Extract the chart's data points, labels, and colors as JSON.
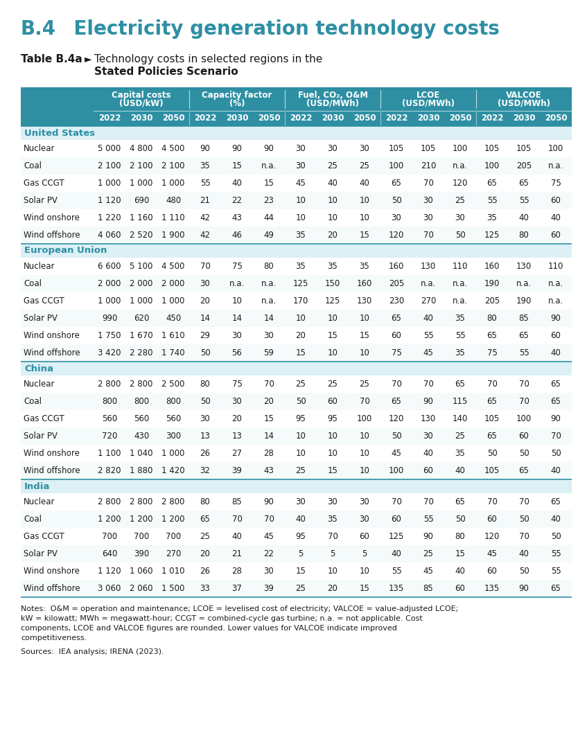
{
  "page_title_b4": "B.4",
  "page_title_rest": "    Electricity generation technology costs",
  "subtitle_bold": "Table B.4a",
  "subtitle_arrow": "►",
  "subtitle_text1": "Technology costs in selected regions in the",
  "subtitle_text2": "Stated Policies Scenario",
  "header_bg": "#2E8FA3",
  "header_text_color": "#FFFFFF",
  "region_bg": "#DCF0F5",
  "region_text_color": "#2E8FA3",
  "separator_color": "#2E8FA3",
  "text_color": "#1a1a1a",
  "group_display": [
    [
      "Capital costs",
      "(USD/kW)"
    ],
    [
      "Capacity factor",
      "(%)"
    ],
    [
      "Fuel, CO₂, O&M",
      "(USD/MWh)"
    ],
    [
      "LCOE",
      "(USD/MWh)"
    ],
    [
      "VALCOE",
      "(USD/MWh)"
    ]
  ],
  "regions": [
    "United States",
    "European Union",
    "China",
    "India"
  ],
  "technologies": [
    "Nuclear",
    "Coal",
    "Gas CCGT",
    "Solar PV",
    "Wind onshore",
    "Wind offshore"
  ],
  "data": {
    "United States": {
      "Nuclear": [
        "5 000",
        "4 800",
        "4 500",
        "90",
        "90",
        "90",
        "30",
        "30",
        "30",
        "105",
        "105",
        "100",
        "105",
        "105",
        "100"
      ],
      "Coal": [
        "2 100",
        "2 100",
        "2 100",
        "35",
        "15",
        "n.a.",
        "30",
        "25",
        "25",
        "100",
        "210",
        "n.a.",
        "100",
        "205",
        "n.a."
      ],
      "Gas CCGT": [
        "1 000",
        "1 000",
        "1 000",
        "55",
        "40",
        "15",
        "45",
        "40",
        "40",
        "65",
        "70",
        "120",
        "65",
        "65",
        "75"
      ],
      "Solar PV": [
        "1 120",
        "690",
        "480",
        "21",
        "22",
        "23",
        "10",
        "10",
        "10",
        "50",
        "30",
        "25",
        "55",
        "55",
        "60"
      ],
      "Wind onshore": [
        "1 220",
        "1 160",
        "1 110",
        "42",
        "43",
        "44",
        "10",
        "10",
        "10",
        "30",
        "30",
        "30",
        "35",
        "40",
        "40"
      ],
      "Wind offshore": [
        "4 060",
        "2 520",
        "1 900",
        "42",
        "46",
        "49",
        "35",
        "20",
        "15",
        "120",
        "70",
        "50",
        "125",
        "80",
        "60"
      ]
    },
    "European Union": {
      "Nuclear": [
        "6 600",
        "5 100",
        "4 500",
        "70",
        "75",
        "80",
        "35",
        "35",
        "35",
        "160",
        "130",
        "110",
        "160",
        "130",
        "110"
      ],
      "Coal": [
        "2 000",
        "2 000",
        "2 000",
        "30",
        "n.a.",
        "n.a.",
        "125",
        "150",
        "160",
        "205",
        "n.a.",
        "n.a.",
        "190",
        "n.a.",
        "n.a."
      ],
      "Gas CCGT": [
        "1 000",
        "1 000",
        "1 000",
        "20",
        "10",
        "n.a.",
        "170",
        "125",
        "130",
        "230",
        "270",
        "n.a.",
        "205",
        "190",
        "n.a."
      ],
      "Solar PV": [
        "990",
        "620",
        "450",
        "14",
        "14",
        "14",
        "10",
        "10",
        "10",
        "65",
        "40",
        "35",
        "80",
        "85",
        "90"
      ],
      "Wind onshore": [
        "1 750",
        "1 670",
        "1 610",
        "29",
        "30",
        "30",
        "20",
        "15",
        "15",
        "60",
        "55",
        "55",
        "65",
        "65",
        "60"
      ],
      "Wind offshore": [
        "3 420",
        "2 280",
        "1 740",
        "50",
        "56",
        "59",
        "15",
        "10",
        "10",
        "75",
        "45",
        "35",
        "75",
        "55",
        "40"
      ]
    },
    "China": {
      "Nuclear": [
        "2 800",
        "2 800",
        "2 500",
        "80",
        "75",
        "70",
        "25",
        "25",
        "25",
        "70",
        "70",
        "65",
        "70",
        "70",
        "65"
      ],
      "Coal": [
        "800",
        "800",
        "800",
        "50",
        "30",
        "20",
        "50",
        "60",
        "70",
        "65",
        "90",
        "115",
        "65",
        "70",
        "65"
      ],
      "Gas CCGT": [
        "560",
        "560",
        "560",
        "30",
        "20",
        "15",
        "95",
        "95",
        "100",
        "120",
        "130",
        "140",
        "105",
        "100",
        "90"
      ],
      "Solar PV": [
        "720",
        "430",
        "300",
        "13",
        "13",
        "14",
        "10",
        "10",
        "10",
        "50",
        "30",
        "25",
        "65",
        "60",
        "70"
      ],
      "Wind onshore": [
        "1 100",
        "1 040",
        "1 000",
        "26",
        "27",
        "28",
        "10",
        "10",
        "10",
        "45",
        "40",
        "35",
        "50",
        "50",
        "50"
      ],
      "Wind offshore": [
        "2 820",
        "1 880",
        "1 420",
        "32",
        "39",
        "43",
        "25",
        "15",
        "10",
        "100",
        "60",
        "40",
        "105",
        "65",
        "40"
      ]
    },
    "India": {
      "Nuclear": [
        "2 800",
        "2 800",
        "2 800",
        "80",
        "85",
        "90",
        "30",
        "30",
        "30",
        "70",
        "70",
        "65",
        "70",
        "70",
        "65"
      ],
      "Coal": [
        "1 200",
        "1 200",
        "1 200",
        "65",
        "70",
        "70",
        "40",
        "35",
        "30",
        "60",
        "55",
        "50",
        "60",
        "50",
        "40"
      ],
      "Gas CCGT": [
        "700",
        "700",
        "700",
        "25",
        "40",
        "45",
        "95",
        "70",
        "60",
        "125",
        "90",
        "80",
        "120",
        "70",
        "50"
      ],
      "Solar PV": [
        "640",
        "390",
        "270",
        "20",
        "21",
        "22",
        "5",
        "5",
        "5",
        "40",
        "25",
        "15",
        "45",
        "40",
        "55"
      ],
      "Wind onshore": [
        "1 120",
        "1 060",
        "1 010",
        "26",
        "28",
        "30",
        "15",
        "10",
        "10",
        "55",
        "45",
        "40",
        "60",
        "50",
        "55"
      ],
      "Wind offshore": [
        "3 060",
        "2 060",
        "1 500",
        "33",
        "37",
        "39",
        "25",
        "20",
        "15",
        "135",
        "85",
        "60",
        "135",
        "90",
        "65"
      ]
    }
  },
  "notes_line1": "Notes:  O&M = operation and maintenance; LCOE = levelised cost of electricity; VALCOE = value-adjusted LCOE;",
  "notes_line2": "kW = kilowatt; MWh = megawatt-hour; CCGT = combined-cycle gas turbine; n.a. = not applicable. Cost",
  "notes_line3": "components, LCOE and VALCOE figures are rounded. Lower values for VALCOE indicate improved",
  "notes_line4": "competitiveness.",
  "sources": "Sources:  IEA analysis; IRENA (2023)."
}
